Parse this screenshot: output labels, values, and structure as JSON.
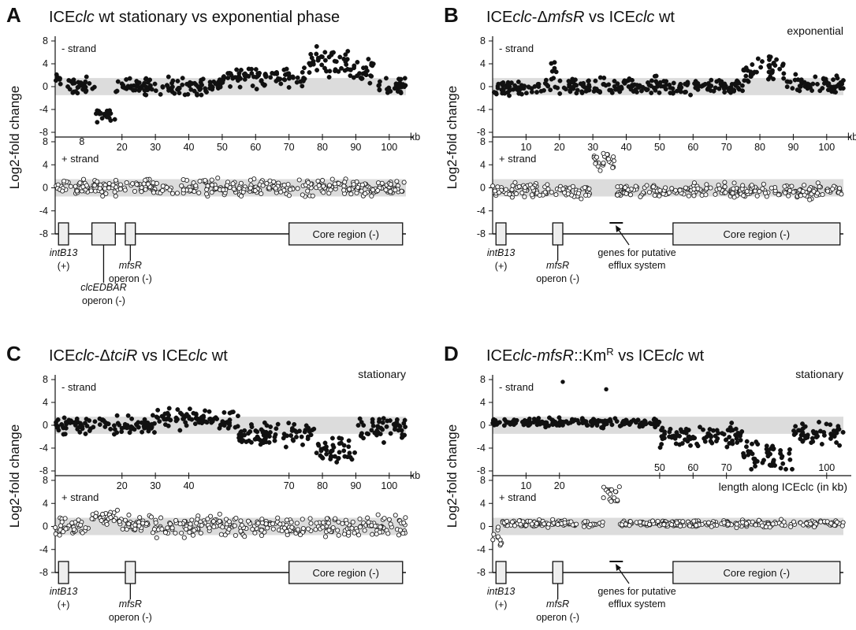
{
  "colors": {
    "band": "#dcdcdc",
    "filled_point": "#111111",
    "open_point_stroke": "#222222",
    "box_fill": "#eeeeee"
  },
  "y_axis_label": "Log2-fold change",
  "chart_data": [
    {
      "type": "scatter",
      "letter": "A",
      "title_parts": [
        "ICE",
        "clc",
        " wt stationary vs exponential phase"
      ],
      "title_italic": [
        false,
        true,
        false
      ],
      "phase_label": "",
      "xlim": [
        0,
        105
      ],
      "ylim": [
        -8,
        8
      ],
      "yticks": [
        8,
        4,
        0,
        -4,
        -8
      ],
      "noise_band": [
        -1.5,
        1.5
      ],
      "kb_unit": "kb",
      "x_tick_position": "between",
      "x_ticks": [
        20,
        30,
        40,
        50,
        60,
        70,
        80,
        90,
        100
      ],
      "x_tick_labels": [
        "20",
        "30",
        "40",
        "50",
        "60",
        "70",
        "80",
        "90",
        "100"
      ],
      "minus_strand": {
        "label": "- strand",
        "segments": [
          [
            0,
            2,
            1,
            1
          ],
          [
            3,
            12,
            0,
            1.4
          ],
          [
            12,
            18,
            -5,
            1.0
          ],
          [
            18,
            50,
            0,
            1.3
          ],
          [
            50,
            60,
            2,
            1.5
          ],
          [
            60,
            75,
            1.5,
            1.7
          ],
          [
            75,
            88,
            4.5,
            2.0
          ],
          [
            88,
            96,
            3,
            1.8
          ],
          [
            96,
            105,
            0,
            1.4
          ]
        ],
        "annotations": []
      },
      "plus_strand": {
        "label": "+ strand",
        "segments": [
          [
            0,
            105,
            0,
            1.2
          ]
        ],
        "annotations": [
          {
            "x": 8,
            "y": 8,
            "text": "8"
          }
        ]
      },
      "gene_map": {
        "features": [
          {
            "x0": 1,
            "x1": 4,
            "kind": "box"
          },
          {
            "x0": 11,
            "x1": 18,
            "kind": "box"
          },
          {
            "x0": 21,
            "x1": 24,
            "kind": "box"
          },
          {
            "x0": 70,
            "x1": 104,
            "kind": "core",
            "text": "Core region (-)"
          }
        ],
        "labels": [
          {
            "text": "intB13",
            "italic": true,
            "sub": "(+)",
            "x": 2.5,
            "leader": false
          },
          {
            "text": "clcEDBAR",
            "italic": true,
            "sub": "operon (-)",
            "x": 14.5,
            "leader": true
          },
          {
            "text": "mfsR",
            "italic": true,
            "sub": "operon (-)",
            "x": 22.5,
            "leader": true
          }
        ]
      }
    },
    {
      "type": "scatter",
      "letter": "B",
      "title_parts": [
        "ICE",
        "clc",
        "-Δ",
        "mfsR",
        " vs ICE",
        "clc",
        " wt"
      ],
      "title_italic": [
        false,
        true,
        false,
        true,
        false,
        true,
        false
      ],
      "phase_label": "exponential",
      "xlim": [
        0,
        105
      ],
      "ylim": [
        -8,
        8
      ],
      "yticks": [
        8,
        4,
        0,
        -4,
        -8
      ],
      "noise_band": [
        -1.5,
        1.5
      ],
      "kb_unit": "kb",
      "x_tick_position": "between",
      "x_ticks": [
        10,
        20,
        30,
        40,
        50,
        60,
        70,
        80,
        90,
        100
      ],
      "x_tick_labels": [
        "10",
        "20",
        "30",
        "40",
        "50",
        "60",
        "70",
        "80",
        "90",
        "100"
      ],
      "minus_strand": {
        "label": "- strand",
        "segments": [
          [
            0,
            17,
            -0.3,
            1.3
          ],
          [
            17,
            20,
            2,
            2.5
          ],
          [
            20,
            75,
            0,
            1.3
          ],
          [
            75,
            88,
            3,
            1.8
          ],
          [
            88,
            105,
            0.5,
            1.4
          ]
        ],
        "annotations": []
      },
      "plus_strand": {
        "label": "+ strand",
        "segments": [
          [
            0,
            30,
            -0.5,
            1.2
          ],
          [
            30,
            37,
            4.5,
            1.4
          ],
          [
            37,
            105,
            -0.5,
            1.1
          ]
        ],
        "annotations": []
      },
      "gene_map": {
        "features": [
          {
            "x0": 1,
            "x1": 4,
            "kind": "box"
          },
          {
            "x0": 18,
            "x1": 21,
            "kind": "box"
          },
          {
            "x0": 35,
            "x1": 39,
            "kind": "bar"
          },
          {
            "x0": 54,
            "x1": 104,
            "kind": "core",
            "text": "Core region (-)"
          }
        ],
        "labels": [
          {
            "text": "intB13",
            "italic": true,
            "sub": "(+)",
            "x": 2.5,
            "leader": false
          },
          {
            "text": "mfsR",
            "italic": true,
            "sub": "operon (-)",
            "x": 19.5,
            "leader": true
          },
          {
            "text": "genes for putative",
            "italic": false,
            "sub": "efflux system",
            "x": 38,
            "leader": "arrow"
          }
        ]
      }
    },
    {
      "type": "scatter",
      "letter": "C",
      "title_parts": [
        "ICE",
        "clc",
        "-Δ",
        "tciR",
        " vs ICE",
        "clc",
        " wt"
      ],
      "title_italic": [
        false,
        true,
        false,
        true,
        false,
        true,
        false
      ],
      "phase_label": "stationary",
      "xlim": [
        0,
        105
      ],
      "ylim": [
        -8,
        8
      ],
      "yticks": [
        8,
        4,
        0,
        -4,
        -8
      ],
      "noise_band": [
        -1.5,
        1.5
      ],
      "kb_unit": "kb",
      "x_tick_position": "mixed",
      "x_ticks": [
        20,
        30,
        40,
        70,
        80,
        90,
        100
      ],
      "x_tick_labels": [
        "20",
        "30",
        "40",
        "70",
        "80",
        "90",
        "100"
      ],
      "minus_strand": {
        "label": "- strand",
        "segments": [
          [
            0,
            30,
            0,
            1.3
          ],
          [
            30,
            55,
            1,
            1.6
          ],
          [
            55,
            78,
            -1.5,
            1.6
          ],
          [
            78,
            90,
            -4,
            2.2
          ],
          [
            90,
            105,
            -0.5,
            2.0
          ]
        ],
        "annotations": []
      },
      "plus_strand": {
        "label": "+ strand",
        "segments": [
          [
            0,
            10,
            0,
            1.3
          ],
          [
            10,
            20,
            1.5,
            1.5
          ],
          [
            20,
            105,
            0,
            1.5
          ]
        ],
        "annotations": []
      },
      "gene_map": {
        "features": [
          {
            "x0": 1,
            "x1": 4,
            "kind": "box"
          },
          {
            "x0": 21,
            "x1": 24,
            "kind": "box"
          },
          {
            "x0": 70,
            "x1": 104,
            "kind": "core",
            "text": "Core region (-)"
          }
        ],
        "labels": [
          {
            "text": "intB13",
            "italic": true,
            "sub": "(+)",
            "x": 2.5,
            "leader": false
          },
          {
            "text": "mfsR",
            "italic": true,
            "sub": "operon (-)",
            "x": 22.5,
            "leader": true
          }
        ]
      }
    },
    {
      "type": "scatter",
      "letter": "D",
      "title_parts": [
        "ICE",
        "clc",
        "-",
        "mfsR",
        "::Km",
        "R",
        " vs ICE",
        "clc",
        " wt"
      ],
      "title_italic": [
        false,
        true,
        false,
        true,
        false,
        false,
        false,
        true,
        false
      ],
      "title_super": [
        false,
        false,
        false,
        false,
        false,
        true,
        false,
        false,
        false
      ],
      "phase_label": "stationary",
      "axis_caption": "length along ICEclc (in kb)",
      "xlim": [
        0,
        105
      ],
      "ylim": [
        -8,
        8
      ],
      "yticks": [
        8,
        4,
        0,
        -4,
        -8
      ],
      "noise_band": [
        -1.5,
        1.5
      ],
      "kb_unit": "",
      "x_tick_position": "split",
      "x_ticks": [
        10,
        20,
        50,
        60,
        70,
        100
      ],
      "x_tick_labels": [
        "10",
        "20",
        "50",
        "60",
        "70",
        "100"
      ],
      "minus_strand": {
        "label": "- strand",
        "segments": [
          [
            0,
            50,
            0.5,
            0.7
          ],
          [
            50,
            75,
            -2,
            1.8
          ],
          [
            75,
            90,
            -5.5,
            2.5
          ],
          [
            90,
            105,
            -1.5,
            2.0
          ]
        ],
        "annotations": [
          {
            "x": 21,
            "y": 7.6,
            "text": ""
          },
          {
            "x": 34,
            "y": 6.3,
            "text": ""
          }
        ]
      },
      "plus_strand": {
        "label": "+ strand",
        "segments": [
          [
            0,
            3,
            -1.5,
            1.6
          ],
          [
            3,
            33,
            0.5,
            0.5
          ],
          [
            33,
            38,
            5.5,
            1.8
          ],
          [
            38,
            105,
            0.5,
            0.5
          ]
        ],
        "annotations": []
      },
      "gene_map": {
        "features": [
          {
            "x0": 1,
            "x1": 4,
            "kind": "box"
          },
          {
            "x0": 18,
            "x1": 21,
            "kind": "box"
          },
          {
            "x0": 35,
            "x1": 39,
            "kind": "bar"
          },
          {
            "x0": 54,
            "x1": 104,
            "kind": "core",
            "text": "Core region (-)"
          }
        ],
        "labels": [
          {
            "text": "intB13",
            "italic": true,
            "sub": "(+)",
            "x": 2.5,
            "leader": false
          },
          {
            "text": "mfsR",
            "italic": true,
            "sub": "operon (-)",
            "x": 19.5,
            "leader": true
          },
          {
            "text": "genes for putative",
            "italic": false,
            "sub": "efflux system",
            "x": 38,
            "leader": "arrow"
          }
        ]
      }
    }
  ]
}
